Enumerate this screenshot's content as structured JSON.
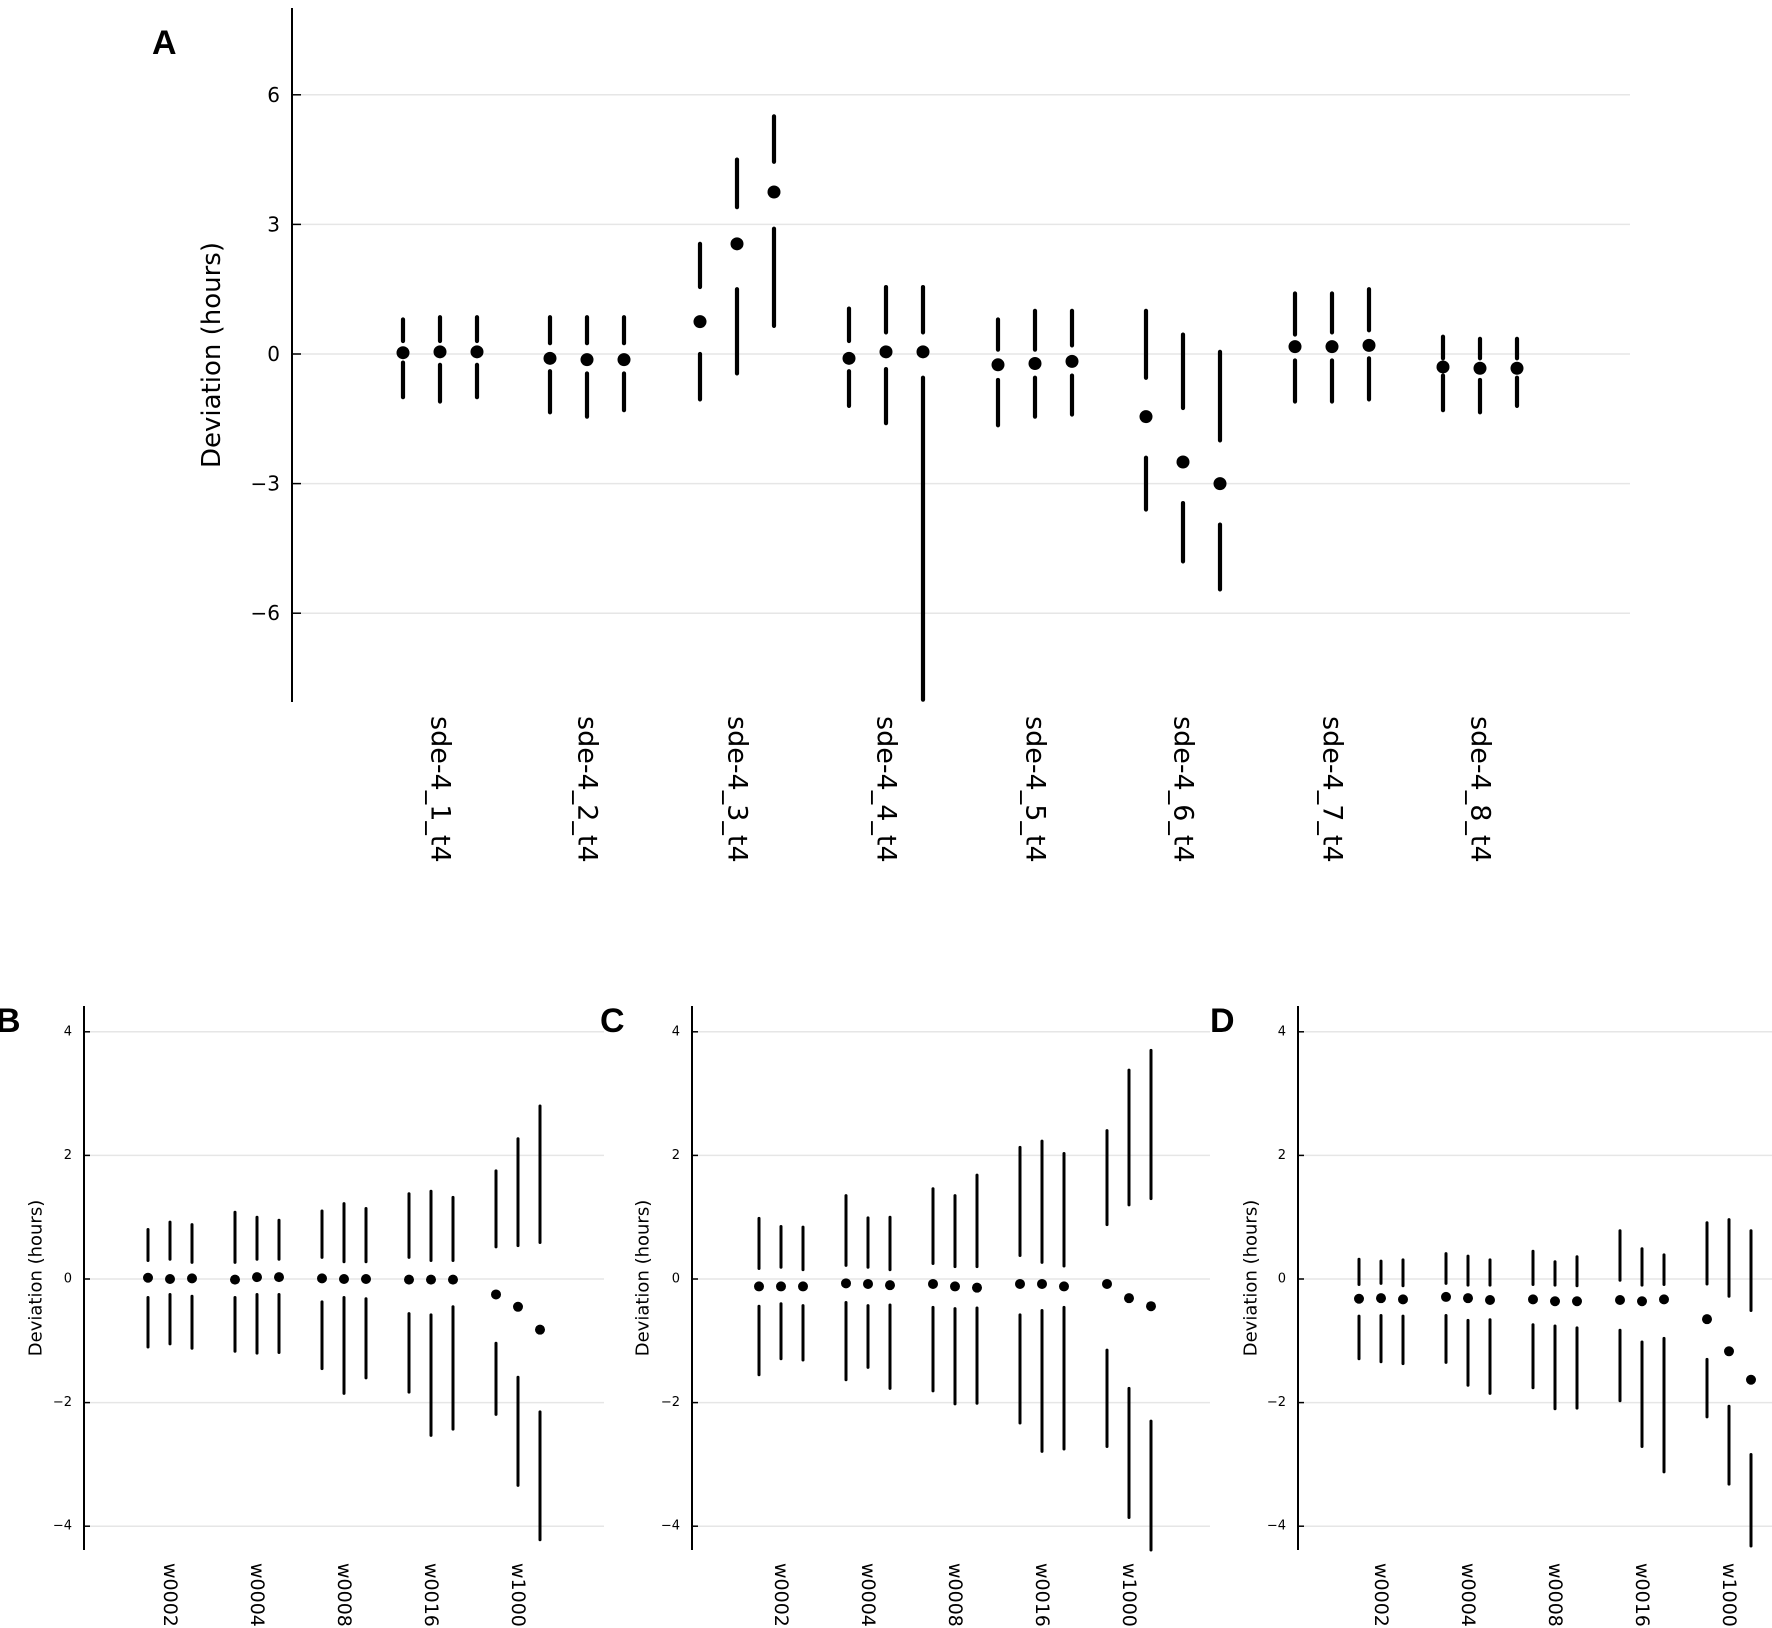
{
  "chart_data": [
    {
      "panel": "A",
      "type": "scatter",
      "subtype": "point-with-split-interval-bars",
      "title": "",
      "xlabel": "",
      "ylabel": "Deviation (hours)",
      "ylim": [
        -8.0,
        8.0
      ],
      "yticks": [
        6,
        3,
        0,
        -3,
        -6
      ],
      "ytick_labels": [
        "6",
        "3",
        "0",
        "−3",
        "−6"
      ],
      "grid": true,
      "legend": null,
      "categories": [
        "sde-4_1_t4",
        "sde-4_2_t4",
        "sde-4_3_t4",
        "sde-4_4_t4",
        "sde-4_5_t4",
        "sde-4_6_t4",
        "sde-4_7_t4",
        "sde-4_8_t4"
      ],
      "points_per_category": 3,
      "note": "Each point: value = dot; upper = [top, bottom] of bar segment above dot; lower = [top, bottom] of bar segment below dot",
      "groups": [
        [
          {
            "value": 0.03,
            "upper": [
              0.8,
              0.3
            ],
            "lower": [
              -0.2,
              -1.0
            ]
          },
          {
            "value": 0.05,
            "upper": [
              0.85,
              0.3
            ],
            "lower": [
              -0.25,
              -1.1
            ]
          },
          {
            "value": 0.05,
            "upper": [
              0.85,
              0.3
            ],
            "lower": [
              -0.25,
              -1.0
            ]
          }
        ],
        [
          {
            "value": -0.1,
            "upper": [
              0.85,
              0.25
            ],
            "lower": [
              -0.4,
              -1.35
            ]
          },
          {
            "value": -0.13,
            "upper": [
              0.85,
              0.25
            ],
            "lower": [
              -0.45,
              -1.45
            ]
          },
          {
            "value": -0.13,
            "upper": [
              0.85,
              0.25
            ],
            "lower": [
              -0.45,
              -1.3
            ]
          }
        ],
        [
          {
            "value": 0.75,
            "upper": [
              2.55,
              1.55
            ],
            "lower": [
              0.0,
              -1.05
            ]
          },
          {
            "value": 2.55,
            "upper": [
              4.5,
              3.4
            ],
            "lower": [
              1.5,
              -0.45
            ]
          },
          {
            "value": 3.75,
            "upper": [
              5.5,
              4.45
            ],
            "lower": [
              2.9,
              0.65
            ]
          }
        ],
        [
          {
            "value": -0.1,
            "upper": [
              1.05,
              0.3
            ],
            "lower": [
              -0.4,
              -1.2
            ]
          },
          {
            "value": 0.05,
            "upper": [
              1.55,
              0.5
            ],
            "lower": [
              -0.35,
              -1.6
            ]
          },
          {
            "value": 0.05,
            "upper": [
              1.55,
              0.5
            ],
            "lower": [
              -0.55,
              -8.0
            ]
          }
        ],
        [
          {
            "value": -0.25,
            "upper": [
              0.8,
              0.1
            ],
            "lower": [
              -0.6,
              -1.65
            ]
          },
          {
            "value": -0.22,
            "upper": [
              1.0,
              0.1
            ],
            "lower": [
              -0.55,
              -1.45
            ]
          },
          {
            "value": -0.17,
            "upper": [
              1.0,
              0.2
            ],
            "lower": [
              -0.5,
              -1.4
            ]
          }
        ],
        [
          {
            "value": -1.45,
            "upper": [
              1.0,
              -0.55
            ],
            "lower": [
              -2.4,
              -3.6
            ]
          },
          {
            "value": -2.5,
            "upper": [
              0.45,
              -1.25
            ],
            "lower": [
              -3.45,
              -4.8
            ]
          },
          {
            "value": -3.0,
            "upper": [
              0.05,
              -2.0
            ],
            "lower": [
              -3.95,
              -5.45
            ]
          }
        ],
        [
          {
            "value": 0.17,
            "upper": [
              1.4,
              0.45
            ],
            "lower": [
              -0.15,
              -1.1
            ]
          },
          {
            "value": 0.17,
            "upper": [
              1.4,
              0.5
            ],
            "lower": [
              -0.15,
              -1.1
            ]
          },
          {
            "value": 0.2,
            "upper": [
              1.5,
              0.55
            ],
            "lower": [
              -0.1,
              -1.05
            ]
          }
        ],
        [
          {
            "value": -0.3,
            "upper": [
              0.4,
              -0.1
            ],
            "lower": [
              -0.5,
              -1.3
            ]
          },
          {
            "value": -0.33,
            "upper": [
              0.35,
              -0.1
            ],
            "lower": [
              -0.6,
              -1.35
            ]
          },
          {
            "value": -0.33,
            "upper": [
              0.35,
              -0.1
            ],
            "lower": [
              -0.55,
              -1.2
            ]
          }
        ]
      ]
    },
    {
      "panel": "B",
      "type": "scatter",
      "subtype": "point-with-split-interval-bars",
      "title": "",
      "xlabel": "",
      "ylabel": "Deviation (hours)",
      "ylim": [
        -4.4,
        4.4
      ],
      "yticks": [
        4,
        2,
        0,
        -2,
        -4
      ],
      "ytick_labels": [
        "4",
        "2",
        "0",
        "−2",
        "−4"
      ],
      "grid": true,
      "legend": null,
      "categories": [
        "w0002",
        "w0004",
        "w0008",
        "w0016",
        "w1000"
      ],
      "points_per_category": 3,
      "groups": [
        [
          {
            "value": 0.02,
            "upper": [
              0.8,
              0.3
            ],
            "lower": [
              -0.3,
              -1.1
            ]
          },
          {
            "value": 0.0,
            "upper": [
              0.92,
              0.32
            ],
            "lower": [
              -0.25,
              -1.05
            ]
          },
          {
            "value": 0.01,
            "upper": [
              0.88,
              0.27
            ],
            "lower": [
              -0.28,
              -1.12
            ]
          }
        ],
        [
          {
            "value": -0.01,
            "upper": [
              1.08,
              0.27
            ],
            "lower": [
              -0.3,
              -1.17
            ]
          },
          {
            "value": 0.03,
            "upper": [
              1.0,
              0.32
            ],
            "lower": [
              -0.25,
              -1.2
            ]
          },
          {
            "value": 0.03,
            "upper": [
              0.95,
              0.32
            ],
            "lower": [
              -0.25,
              -1.19
            ]
          }
        ],
        [
          {
            "value": 0.01,
            "upper": [
              1.1,
              0.35
            ],
            "lower": [
              -0.37,
              -1.45
            ]
          },
          {
            "value": 0.0,
            "upper": [
              1.22,
              0.28
            ],
            "lower": [
              -0.3,
              -1.85
            ]
          },
          {
            "value": 0.0,
            "upper": [
              1.14,
              0.28
            ],
            "lower": [
              -0.32,
              -1.6
            ]
          }
        ],
        [
          {
            "value": -0.01,
            "upper": [
              1.38,
              0.35
            ],
            "lower": [
              -0.56,
              -1.83
            ]
          },
          {
            "value": -0.01,
            "upper": [
              1.42,
              0.3
            ],
            "lower": [
              -0.58,
              -2.53
            ]
          },
          {
            "value": -0.01,
            "upper": [
              1.32,
              0.3
            ],
            "lower": [
              -0.45,
              -2.43
            ]
          }
        ],
        [
          {
            "value": -0.25,
            "upper": [
              1.75,
              0.52
            ],
            "lower": [
              -1.04,
              -2.19
            ]
          },
          {
            "value": -0.45,
            "upper": [
              2.27,
              0.54
            ],
            "lower": [
              -1.59,
              -3.34
            ]
          },
          {
            "value": -0.82,
            "upper": [
              2.8,
              0.59
            ],
            "lower": [
              -2.15,
              -4.22
            ]
          }
        ]
      ]
    },
    {
      "panel": "C",
      "type": "scatter",
      "subtype": "point-with-split-interval-bars",
      "title": "",
      "xlabel": "",
      "ylabel": "Deviation (hours)",
      "ylim": [
        -4.4,
        4.4
      ],
      "yticks": [
        4,
        2,
        0,
        -2,
        -4
      ],
      "ytick_labels": [
        "4",
        "2",
        "0",
        "−2",
        "−4"
      ],
      "grid": true,
      "legend": null,
      "categories": [
        "w0002",
        "w0004",
        "w0008",
        "w0016",
        "w1000"
      ],
      "points_per_category": 3,
      "groups": [
        [
          {
            "value": -0.12,
            "upper": [
              0.98,
              0.17
            ],
            "lower": [
              -0.44,
              -1.55
            ]
          },
          {
            "value": -0.12,
            "upper": [
              0.85,
              0.19
            ],
            "lower": [
              -0.4,
              -1.29
            ]
          },
          {
            "value": -0.12,
            "upper": [
              0.84,
              0.15
            ],
            "lower": [
              -0.43,
              -1.31
            ]
          }
        ],
        [
          {
            "value": -0.07,
            "upper": [
              1.35,
              0.22
            ],
            "lower": [
              -0.38,
              -1.63
            ]
          },
          {
            "value": -0.08,
            "upper": [
              0.99,
              0.19
            ],
            "lower": [
              -0.43,
              -1.43
            ]
          },
          {
            "value": -0.1,
            "upper": [
              1.0,
              0.15
            ],
            "lower": [
              -0.42,
              -1.77
            ]
          }
        ],
        [
          {
            "value": -0.08,
            "upper": [
              1.46,
              0.25
            ],
            "lower": [
              -0.46,
              -1.81
            ]
          },
          {
            "value": -0.12,
            "upper": [
              1.35,
              0.2
            ],
            "lower": [
              -0.48,
              -2.02
            ]
          },
          {
            "value": -0.14,
            "upper": [
              1.68,
              0.2
            ],
            "lower": [
              -0.47,
              -2.01
            ]
          }
        ],
        [
          {
            "value": -0.08,
            "upper": [
              2.13,
              0.38
            ],
            "lower": [
              -0.58,
              -2.33
            ]
          },
          {
            "value": -0.08,
            "upper": [
              2.23,
              0.27
            ],
            "lower": [
              -0.51,
              -2.79
            ]
          },
          {
            "value": -0.12,
            "upper": [
              2.03,
              0.21
            ],
            "lower": [
              -0.46,
              -2.75
            ]
          }
        ],
        [
          {
            "value": -0.08,
            "upper": [
              2.4,
              0.88
            ],
            "lower": [
              -1.15,
              -2.71
            ]
          },
          {
            "value": -0.31,
            "upper": [
              3.38,
              1.2
            ],
            "lower": [
              -1.77,
              -3.86
            ]
          },
          {
            "value": -0.44,
            "upper": [
              3.7,
              1.3
            ],
            "lower": [
              -2.3,
              -4.4
            ]
          }
        ]
      ]
    },
    {
      "panel": "D",
      "type": "scatter",
      "subtype": "point-with-split-interval-bars",
      "title": "",
      "xlabel": "",
      "ylabel": "Deviation (hours)",
      "ylim": [
        -4.4,
        4.4
      ],
      "yticks": [
        4,
        2,
        0,
        -2,
        -4
      ],
      "ytick_labels": [
        "4",
        "2",
        "0",
        "−2",
        "−4"
      ],
      "grid": true,
      "legend": null,
      "categories": [
        "w0002",
        "w0004",
        "w0008",
        "w0016",
        "w1000"
      ],
      "points_per_category": 3,
      "groups": [
        [
          {
            "value": -0.32,
            "upper": [
              0.32,
              -0.09
            ],
            "lower": [
              -0.6,
              -1.29
            ]
          },
          {
            "value": -0.31,
            "upper": [
              0.29,
              -0.07
            ],
            "lower": [
              -0.59,
              -1.34
            ]
          },
          {
            "value": -0.33,
            "upper": [
              0.31,
              -0.11
            ],
            "lower": [
              -0.6,
              -1.37
            ]
          }
        ],
        [
          {
            "value": -0.29,
            "upper": [
              0.41,
              -0.07
            ],
            "lower": [
              -0.59,
              -1.35
            ]
          },
          {
            "value": -0.31,
            "upper": [
              0.37,
              -0.1
            ],
            "lower": [
              -0.67,
              -1.72
            ]
          },
          {
            "value": -0.34,
            "upper": [
              0.31,
              -0.1
            ],
            "lower": [
              -0.66,
              -1.85
            ]
          }
        ],
        [
          {
            "value": -0.33,
            "upper": [
              0.45,
              -0.09
            ],
            "lower": [
              -0.74,
              -1.76
            ]
          },
          {
            "value": -0.36,
            "upper": [
              0.28,
              -0.1
            ],
            "lower": [
              -0.76,
              -2.1
            ]
          },
          {
            "value": -0.36,
            "upper": [
              0.36,
              -0.11
            ],
            "lower": [
              -0.79,
              -2.09
            ]
          }
        ],
        [
          {
            "value": -0.34,
            "upper": [
              0.78,
              -0.02
            ],
            "lower": [
              -0.83,
              -1.97
            ]
          },
          {
            "value": -0.36,
            "upper": [
              0.49,
              -0.1
            ],
            "lower": [
              -1.02,
              -2.71
            ]
          },
          {
            "value": -0.33,
            "upper": [
              0.39,
              -0.09
            ],
            "lower": [
              -0.96,
              -3.12
            ]
          }
        ],
        [
          {
            "value": -0.65,
            "upper": [
              0.91,
              -0.08
            ],
            "lower": [
              -1.3,
              -2.23
            ]
          },
          {
            "value": -1.17,
            "upper": [
              0.96,
              -0.28
            ],
            "lower": [
              -2.06,
              -3.32
            ]
          },
          {
            "value": -1.63,
            "upper": [
              0.78,
              -0.51
            ],
            "lower": [
              -2.84,
              -4.32
            ]
          }
        ]
      ]
    }
  ],
  "figure": {
    "panels": [
      {
        "letter": "A",
        "ylabel": "Deviation (hours)"
      },
      {
        "letter": "B",
        "ylabel": "Deviation (hours)"
      },
      {
        "letter": "C",
        "ylabel": "Deviation (hours)"
      },
      {
        "letter": "D",
        "ylabel": "Deviation (hours)"
      }
    ],
    "colors": {
      "marker": "#000000",
      "axis": "#000000",
      "grid": "#e6e6e6",
      "background": "#ffffff"
    }
  }
}
